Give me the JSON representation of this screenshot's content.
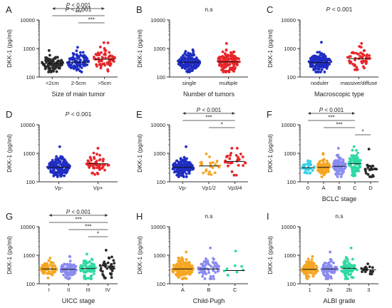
{
  "figure": {
    "y_ticks": [
      "100",
      "1000",
      "10000"
    ],
    "colors": {
      "black": "#2b2b2b",
      "blue": "#1f2dc2",
      "red": "#e8262a",
      "orange": "#f5a623",
      "cyan": "#37d2e6",
      "purple": "#8a8cf0",
      "green": "#2fd9a4"
    }
  },
  "chart_data": [
    {
      "type": "scatter",
      "panel_label": "A",
      "xlabel": "Size of main tumor",
      "ylabel": "DKK-1 (pg/ml)",
      "y_scale": "log",
      "ylim": [
        100,
        10000
      ],
      "p_text": "P < 0.001",
      "brackets": [
        {
          "from": 0,
          "to": 2,
          "label": "P < 0.001",
          "arrow": true
        },
        {
          "from": 0,
          "to": 2,
          "label": "***"
        },
        {
          "from": 1,
          "to": 2,
          "label": "***"
        }
      ],
      "series": [
        {
          "category": "<2cm",
          "color": "black",
          "n": 80,
          "median": 300,
          "spread": 0.14,
          "min": 150,
          "max": 850
        },
        {
          "category": "2-5cm",
          "color": "blue",
          "n": 95,
          "median": 330,
          "spread": 0.16,
          "min": 150,
          "max": 1100
        },
        {
          "category": ">5cm",
          "color": "red",
          "n": 65,
          "median": 420,
          "spread": 0.2,
          "min": 160,
          "max": 1600
        }
      ]
    },
    {
      "type": "scatter",
      "panel_label": "B",
      "xlabel": "Number of tumors",
      "ylabel": "DKK-1 (pg/ml)",
      "y_scale": "log",
      "ylim": [
        100,
        10000
      ],
      "p_text": "n.s",
      "brackets": [],
      "series": [
        {
          "category": "single",
          "color": "blue",
          "n": 150,
          "median": 330,
          "spread": 0.14,
          "min": 150,
          "max": 900
        },
        {
          "category": "multiple",
          "color": "red",
          "n": 130,
          "median": 340,
          "spread": 0.18,
          "min": 150,
          "max": 1500
        }
      ]
    },
    {
      "type": "scatter",
      "panel_label": "C",
      "xlabel": "Macroscopic type",
      "ylabel": "DKK-1 (pg/ml)",
      "y_scale": "log",
      "ylim": [
        100,
        10000
      ],
      "p_text": "P < 0.001",
      "brackets": [],
      "series": [
        {
          "category": "noduler",
          "color": "blue",
          "n": 160,
          "median": 320,
          "spread": 0.15,
          "min": 150,
          "max": 1650
        },
        {
          "category": "massive/diffuse",
          "color": "red",
          "n": 55,
          "median": 440,
          "spread": 0.18,
          "min": 180,
          "max": 1500
        }
      ]
    },
    {
      "type": "scatter",
      "panel_label": "D",
      "xlabel": "",
      "ylabel": "DKK-1 (pg/ml)",
      "y_scale": "log",
      "ylim": [
        100,
        10000
      ],
      "p_text": "P < 0.001",
      "brackets": [],
      "series": [
        {
          "category": "Vp-",
          "color": "blue",
          "n": 170,
          "median": 320,
          "spread": 0.15,
          "min": 150,
          "max": 1700
        },
        {
          "category": "Vp+",
          "color": "red",
          "n": 50,
          "median": 430,
          "spread": 0.18,
          "min": 180,
          "max": 1500
        }
      ]
    },
    {
      "type": "scatter",
      "panel_label": "E",
      "xlabel": "",
      "ylabel": "DKK-1 (pg/ml)",
      "y_scale": "log",
      "ylim": [
        100,
        10000
      ],
      "p_text": "",
      "brackets": [
        {
          "from": 0,
          "to": 2,
          "label": "P < 0.001",
          "arrow": true
        },
        {
          "from": 0,
          "to": 2,
          "label": "***"
        },
        {
          "from": 1,
          "to": 2,
          "label": "*"
        }
      ],
      "series": [
        {
          "category": "Vp-",
          "color": "blue",
          "n": 160,
          "median": 320,
          "spread": 0.15,
          "min": 150,
          "max": 1700
        },
        {
          "category": "Vp1/2",
          "color": "orange",
          "n": 28,
          "median": 360,
          "spread": 0.15,
          "min": 180,
          "max": 950
        },
        {
          "category": "Vp3/4",
          "color": "red",
          "n": 28,
          "median": 520,
          "spread": 0.2,
          "min": 170,
          "max": 1500
        }
      ]
    },
    {
      "type": "scatter",
      "panel_label": "F",
      "xlabel": "BCLC stage",
      "ylabel": "DKK-1 (pg/ml)",
      "y_scale": "log",
      "ylim": [
        100,
        10000
      ],
      "p_text": "",
      "brackets": [
        {
          "from": 0,
          "to": 3,
          "label": "P < 0.001",
          "arrow": true
        },
        {
          "from": 0,
          "to": 3,
          "label": "***"
        },
        {
          "from": 1,
          "to": 3,
          "label": "***"
        },
        {
          "from": 3,
          "to": 4,
          "label": "*"
        }
      ],
      "series": [
        {
          "category": "0",
          "color": "cyan",
          "n": 30,
          "median": 310,
          "spread": 0.1,
          "min": 200,
          "max": 550
        },
        {
          "category": "A",
          "color": "orange",
          "n": 100,
          "median": 320,
          "spread": 0.13,
          "min": 150,
          "max": 1000
        },
        {
          "category": "B",
          "color": "purple",
          "n": 90,
          "median": 350,
          "spread": 0.16,
          "min": 150,
          "max": 1500
        },
        {
          "category": "C",
          "color": "green",
          "n": 80,
          "median": 430,
          "spread": 0.19,
          "min": 160,
          "max": 1700
        },
        {
          "category": "D",
          "color": "black",
          "n": 20,
          "median": 280,
          "spread": 0.15,
          "min": 150,
          "max": 1400
        }
      ]
    },
    {
      "type": "scatter",
      "panel_label": "G",
      "xlabel": "UICC stage",
      "ylabel": "DKK-1 (pg/ml)",
      "y_scale": "log",
      "ylim": [
        100,
        10000
      ],
      "p_text": "",
      "brackets": [
        {
          "from": 0,
          "to": 3,
          "label": "P < 0.001",
          "arrow": true
        },
        {
          "from": 0,
          "to": 3,
          "label": "***"
        },
        {
          "from": 1,
          "to": 3,
          "label": "***"
        },
        {
          "from": 2,
          "to": 3,
          "label": "*"
        }
      ],
      "series": [
        {
          "category": "I",
          "color": "orange",
          "n": 70,
          "median": 330,
          "spread": 0.13,
          "min": 160,
          "max": 800
        },
        {
          "category": "II",
          "color": "purple",
          "n": 100,
          "median": 320,
          "spread": 0.14,
          "min": 150,
          "max": 900
        },
        {
          "category": "III",
          "color": "green",
          "n": 70,
          "median": 340,
          "spread": 0.16,
          "min": 150,
          "max": 1100
        },
        {
          "category": "IV",
          "color": "black",
          "n": 35,
          "median": 420,
          "spread": 0.2,
          "min": 160,
          "max": 1500
        }
      ]
    },
    {
      "type": "scatter",
      "panel_label": "H",
      "xlabel": "Child-Pugh",
      "ylabel": "DKK-1 (pg/ml)",
      "y_scale": "log",
      "ylim": [
        100,
        10000
      ],
      "p_text": "n.s",
      "brackets": [],
      "series": [
        {
          "category": "A",
          "color": "orange",
          "n": 180,
          "median": 330,
          "spread": 0.15,
          "min": 150,
          "max": 1300
        },
        {
          "category": "B",
          "color": "purple",
          "n": 70,
          "median": 330,
          "spread": 0.17,
          "min": 150,
          "max": 1800
        },
        {
          "category": "C",
          "color": "green",
          "n": 8,
          "median": 290,
          "spread": 0.13,
          "min": 200,
          "max": 1400
        }
      ]
    },
    {
      "type": "scatter",
      "panel_label": "I",
      "xlabel": "ALBI grade",
      "ylabel": "DKK-1 (pg/ml)",
      "y_scale": "log",
      "ylim": [
        100,
        10000
      ],
      "p_text": "n.s",
      "brackets": [],
      "series": [
        {
          "category": "1",
          "color": "orange",
          "n": 100,
          "median": 320,
          "spread": 0.13,
          "min": 150,
          "max": 900
        },
        {
          "category": "2a",
          "color": "purple",
          "n": 90,
          "median": 330,
          "spread": 0.15,
          "min": 150,
          "max": 1300
        },
        {
          "category": "2b",
          "color": "green",
          "n": 70,
          "median": 350,
          "spread": 0.18,
          "min": 150,
          "max": 1800
        },
        {
          "category": "3",
          "color": "black",
          "n": 18,
          "median": 310,
          "spread": 0.09,
          "min": 220,
          "max": 500
        }
      ]
    }
  ]
}
